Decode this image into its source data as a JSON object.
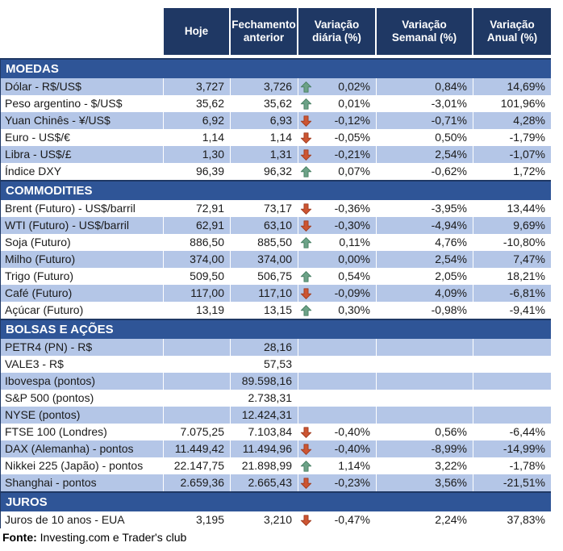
{
  "columns": [
    "Hoje",
    "Fechamento anterior",
    "Variação diária (%)",
    "Variação Semanal (%)",
    "Variação Anual (%)"
  ],
  "sections": [
    {
      "title": "MOEDAS",
      "rows": [
        {
          "label": "Dólar - R$/US$",
          "hoje": "3,727",
          "fechamento": "3,726",
          "arrow": "up",
          "diaria": "0,02%",
          "semanal": "0,84%",
          "anual": "14,69%"
        },
        {
          "label": "Peso argentino - $/US$",
          "hoje": "35,62",
          "fechamento": "35,62",
          "arrow": "up",
          "diaria": "0,01%",
          "semanal": "-3,01%",
          "anual": "101,96%"
        },
        {
          "label": "Yuan Chinês - ¥/US$",
          "hoje": "6,92",
          "fechamento": "6,93",
          "arrow": "down",
          "diaria": "-0,12%",
          "semanal": "-0,71%",
          "anual": "4,28%"
        },
        {
          "label": "Euro - US$/€",
          "hoje": "1,14",
          "fechamento": "1,14",
          "arrow": "down",
          "diaria": "-0,05%",
          "semanal": "0,50%",
          "anual": "-1,79%"
        },
        {
          "label": "Libra - US$/£",
          "hoje": "1,30",
          "fechamento": "1,31",
          "arrow": "down",
          "diaria": "-0,21%",
          "semanal": "2,54%",
          "anual": "-1,07%"
        },
        {
          "label": "Índice DXY",
          "hoje": "96,39",
          "fechamento": "96,32",
          "arrow": "up",
          "diaria": "0,07%",
          "semanal": "-0,62%",
          "anual": "1,72%"
        }
      ]
    },
    {
      "title": "COMMODITIES",
      "rows": [
        {
          "label": "Brent (Futuro) - US$/barril",
          "hoje": "72,91",
          "fechamento": "73,17",
          "arrow": "down",
          "diaria": "-0,36%",
          "semanal": "-3,95%",
          "anual": "13,44%"
        },
        {
          "label": "WTI (Futuro) - US$/barril",
          "hoje": "62,91",
          "fechamento": "63,10",
          "arrow": "down",
          "diaria": "-0,30%",
          "semanal": "-4,94%",
          "anual": "9,69%"
        },
        {
          "label": "Soja (Futuro)",
          "hoje": "886,50",
          "fechamento": "885,50",
          "arrow": "up",
          "diaria": "0,11%",
          "semanal": "4,76%",
          "anual": "-10,80%"
        },
        {
          "label": "Milho (Futuro)",
          "hoje": "374,00",
          "fechamento": "374,00",
          "arrow": "none",
          "diaria": "0,00%",
          "semanal": "2,54%",
          "anual": "7,47%"
        },
        {
          "label": "Trigo (Futuro)",
          "hoje": "509,50",
          "fechamento": "506,75",
          "arrow": "up",
          "diaria": "0,54%",
          "semanal": "2,05%",
          "anual": "18,21%"
        },
        {
          "label": "Café (Futuro)",
          "hoje": "117,00",
          "fechamento": "117,10",
          "arrow": "down",
          "diaria": "-0,09%",
          "semanal": "4,09%",
          "anual": "-6,81%"
        },
        {
          "label": "Açúcar (Futuro)",
          "hoje": "13,19",
          "fechamento": "13,15",
          "arrow": "up",
          "diaria": "0,30%",
          "semanal": "-0,98%",
          "anual": "-9,41%"
        }
      ]
    },
    {
      "title": "BOLSAS E AÇÕES",
      "rows": [
        {
          "label": "PETR4 (PN) - R$",
          "hoje": "",
          "fechamento": "28,16",
          "arrow": "none",
          "diaria": "",
          "semanal": "",
          "anual": ""
        },
        {
          "label": "VALE3 - R$",
          "hoje": "",
          "fechamento": "57,53",
          "arrow": "none",
          "diaria": "",
          "semanal": "",
          "anual": ""
        },
        {
          "label": "Ibovespa (pontos)",
          "hoje": "",
          "fechamento": "89.598,16",
          "arrow": "none",
          "diaria": "",
          "semanal": "",
          "anual": ""
        },
        {
          "label": "S&P 500 (pontos)",
          "hoje": "",
          "fechamento": "2.738,31",
          "arrow": "none",
          "diaria": "",
          "semanal": "",
          "anual": ""
        },
        {
          "label": "NYSE (pontos)",
          "hoje": "",
          "fechamento": "12.424,31",
          "arrow": "none",
          "diaria": "",
          "semanal": "",
          "anual": ""
        },
        {
          "label": "FTSE 100 (Londres)",
          "hoje": "7.075,25",
          "fechamento": "7.103,84",
          "arrow": "down",
          "diaria": "-0,40%",
          "semanal": "0,56%",
          "anual": "-6,44%"
        },
        {
          "label": "DAX (Alemanha) - pontos",
          "hoje": "11.449,42",
          "fechamento": "11.494,96",
          "arrow": "down",
          "diaria": "-0,40%",
          "semanal": "-8,99%",
          "anual": "-14,99%"
        },
        {
          "label": "Nikkei 225 (Japão) - pontos",
          "hoje": "22.147,75",
          "fechamento": "21.898,99",
          "arrow": "up",
          "diaria": "1,14%",
          "semanal": "3,22%",
          "anual": "-1,78%"
        },
        {
          "label": "Shanghai - pontos",
          "hoje": "2.659,36",
          "fechamento": "2.665,43",
          "arrow": "down",
          "diaria": "-0,23%",
          "semanal": "3,56%",
          "anual": "-21,51%"
        }
      ]
    },
    {
      "title": "JUROS",
      "rows": [
        {
          "label": "Juros de 10 anos - EUA",
          "hoje": "3,195",
          "fechamento": "3,210",
          "arrow": "down",
          "diaria": "-0,47%",
          "semanal": "2,24%",
          "anual": "37,83%"
        }
      ]
    }
  ],
  "footer": {
    "label": "Fonte:",
    "text": " Investing.com e Trader's club"
  },
  "colors": {
    "header_bg": "#1F3864",
    "section_bg": "#2F5597",
    "stripe": "#B4C6E7",
    "up_arrow_fill": "#6CA287",
    "up_arrow_stroke": "#477E62",
    "down_arrow_fill": "#CD5532",
    "down_arrow_stroke": "#A03C20"
  }
}
